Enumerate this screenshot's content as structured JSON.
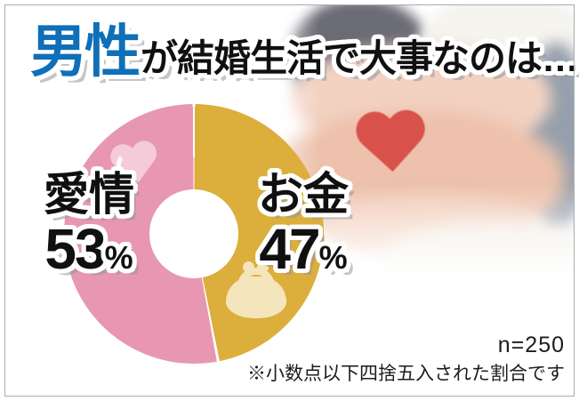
{
  "title": {
    "highlight": "男性",
    "rest": "が結婚生活で大事なのは…"
  },
  "chart_data": {
    "type": "pie",
    "subtype": "donut",
    "title": "男性が結婚生活で大事なのは…",
    "categories": [
      "愛情",
      "お金"
    ],
    "values": [
      53,
      47
    ],
    "unit": "%",
    "colors": [
      "#E897B3",
      "#DCAE3B"
    ],
    "segment_icons": [
      "heart-icon",
      "coin-purse-icon"
    ],
    "legend_position": "labels-on-slices",
    "sample_size": "n=250",
    "footnote": "※小数点以下四捨五入された割合です"
  },
  "segments": {
    "love": {
      "label": "愛情",
      "value": "53",
      "unit": "%"
    },
    "money": {
      "label": "お金",
      "value": "47",
      "unit": "%"
    }
  },
  "footer": {
    "sample_size": "n=250",
    "note": "※小数点以下四捨五入された割合です"
  },
  "colors": {
    "title_accent": "#0F6FB8",
    "title_text": "#101010",
    "love_pink": "#E897B3",
    "money_gold": "#DCAE3B",
    "heart_icon_pink": "#F5CBD9",
    "purse_icon_cream": "#F4E5BD",
    "photo_heart_red": "#D8514A"
  }
}
